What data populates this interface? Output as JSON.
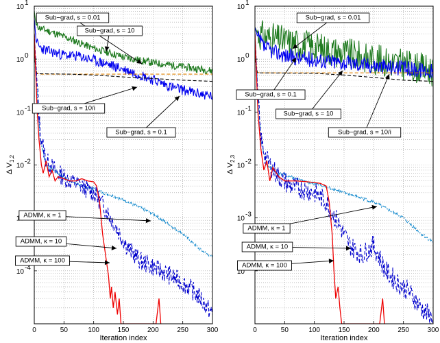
{
  "chart_data": [
    {
      "type": "line",
      "panel": "left",
      "ylabel_main": "Δ V",
      "ylabel_sub": "1,2",
      "xlabel": "Iteration index",
      "x_ticks": [
        0,
        50,
        100,
        150,
        200,
        250,
        300
      ],
      "xlim": [
        0,
        300
      ],
      "ylim": [
        1e-05,
        10
      ],
      "yscale": "log",
      "y_ticks": [
        {
          "value": 10,
          "mantissa": "10",
          "exp": "1"
        },
        {
          "value": 1,
          "mantissa": "10",
          "exp": "0"
        },
        {
          "value": 0.1,
          "mantissa": "10",
          "exp": "-1"
        },
        {
          "value": 0.01,
          "mantissa": "10",
          "exp": "-2"
        },
        {
          "value": 0.001,
          "mantissa": "10",
          "exp": "-3"
        },
        {
          "value": 0.0001,
          "mantissa": "10",
          "exp": "-4"
        }
      ],
      "grid": true,
      "series": [
        {
          "color": "#1f7a1f",
          "dash": "",
          "width": 1.2,
          "noise": 0.07,
          "seed": 11,
          "points": [
            [
              0,
              8
            ],
            [
              3,
              4.5
            ],
            [
              10,
              3.8
            ],
            [
              30,
              3.2
            ],
            [
              60,
              2.4
            ],
            [
              100,
              1.6
            ],
            [
              150,
              1.1
            ],
            [
              200,
              0.85
            ],
            [
              250,
              0.72
            ],
            [
              300,
              0.6
            ]
          ]
        },
        {
          "color": "#0000ee",
          "dash": "",
          "width": 1.1,
          "noise": 0.1,
          "seed": 23,
          "points": [
            [
              0,
              6
            ],
            [
              3,
              2.2
            ],
            [
              8,
              1.7
            ],
            [
              20,
              1.45
            ],
            [
              50,
              1.2
            ],
            [
              80,
              1.1
            ],
            [
              100,
              0.95
            ],
            [
              140,
              0.7
            ],
            [
              180,
              0.5
            ],
            [
              230,
              0.3
            ],
            [
              270,
              0.23
            ],
            [
              300,
              0.2
            ]
          ]
        },
        {
          "color": "#e08000",
          "dash": "5,3",
          "width": 1.1,
          "noise": 0,
          "seed": 3,
          "points": [
            [
              0,
              1.5
            ],
            [
              4,
              0.55
            ],
            [
              10,
              0.52
            ],
            [
              300,
              0.52
            ]
          ]
        },
        {
          "color": "#000000",
          "dash": "5,3",
          "width": 1.1,
          "noise": 0,
          "seed": 5,
          "points": [
            [
              0,
              1.2
            ],
            [
              4,
              0.53
            ],
            [
              60,
              0.52
            ],
            [
              100,
              0.5
            ],
            [
              150,
              0.46
            ],
            [
              200,
              0.43
            ],
            [
              250,
              0.4
            ],
            [
              300,
              0.38
            ]
          ]
        },
        {
          "color": "#1188cc",
          "dash": "6,2,2,2",
          "width": 1.1,
          "noise": 0.03,
          "seed": 7,
          "points": [
            [
              0,
              3
            ],
            [
              5,
              0.2
            ],
            [
              10,
              0.03
            ],
            [
              20,
              0.01
            ],
            [
              40,
              0.007
            ],
            [
              60,
              0.005
            ],
            [
              80,
              0.004
            ],
            [
              100,
              0.0035
            ],
            [
              150,
              0.0022
            ],
            [
              200,
              0.0012
            ],
            [
              250,
              0.0005
            ],
            [
              280,
              0.00025
            ],
            [
              300,
              0.00018
            ]
          ]
        },
        {
          "color": "#0000cc",
          "dash": "5,3",
          "width": 1.1,
          "noise": 0.18,
          "seed": 13,
          "points": [
            [
              0,
              3
            ],
            [
              5,
              0.3
            ],
            [
              10,
              0.04
            ],
            [
              20,
              0.012
            ],
            [
              40,
              0.007
            ],
            [
              60,
              0.005
            ],
            [
              80,
              0.004
            ],
            [
              100,
              0.003
            ],
            [
              120,
              0.0015
            ],
            [
              140,
              0.0006
            ],
            [
              160,
              0.00025
            ],
            [
              180,
              0.00015
            ],
            [
              200,
              0.00012
            ],
            [
              230,
              8e-05
            ],
            [
              260,
              5e-05
            ],
            [
              280,
              3e-05
            ],
            [
              300,
              1.5e-05
            ]
          ]
        },
        {
          "color": "#ee0000",
          "dash": "",
          "width": 1.3,
          "noise": 0,
          "seed": 1,
          "points": [
            [
              0,
              3
            ],
            [
              5,
              0.1
            ],
            [
              8,
              0.03
            ],
            [
              12,
              0.01
            ],
            [
              15,
              0.007
            ],
            [
              20,
              0.012
            ],
            [
              25,
              0.006
            ],
            [
              30,
              0.008
            ],
            [
              35,
              0.005
            ],
            [
              40,
              0.006
            ],
            [
              50,
              0.0055
            ],
            [
              60,
              0.005
            ],
            [
              70,
              0.005
            ],
            [
              80,
              0.0055
            ],
            [
              90,
              0.005
            ],
            [
              100,
              0.0048
            ],
            [
              105,
              0.004
            ],
            [
              110,
              0.002
            ],
            [
              115,
              0.0005
            ],
            [
              120,
              0.0002
            ],
            [
              125,
              8e-05
            ],
            [
              128,
              3e-05
            ],
            [
              130,
              5e-05
            ],
            [
              133,
              2e-05
            ],
            [
              136,
              4e-05
            ],
            [
              140,
              1.5e-05
            ],
            [
              143,
              3e-05
            ],
            [
              146,
              1e-05
            ],
            [
              205,
              1e-05
            ],
            [
              210,
              3e-05
            ],
            [
              213,
              1e-05
            ]
          ]
        }
      ],
      "annotations": [
        {
          "label": "Sub−grad, s = 0.01",
          "box": [
            106,
            26
          ],
          "target": [
            207,
            93
          ]
        },
        {
          "label": "Sub−grad, s = 10",
          "box": [
            160,
            45
          ],
          "target": [
            155,
            75
          ]
        },
        {
          "label": "Sub−grad, s = 10/i",
          "box": [
            100,
            158
          ],
          "target": [
            200,
            127
          ]
        },
        {
          "label": "Sub−grad, s = 0.1",
          "box": [
            206,
            193
          ],
          "target": [
            262,
            140
          ]
        },
        {
          "label": "ADMM, κ = 1",
          "box": [
            62,
            314
          ],
          "target": [
            220,
            322
          ]
        },
        {
          "label": "ADMM, κ = 10",
          "box": [
            60,
            352
          ],
          "target": [
            170,
            362
          ]
        },
        {
          "label": "ADMM, κ = 100",
          "box": [
            62,
            380
          ],
          "target": [
            160,
            383
          ]
        }
      ]
    },
    {
      "type": "line",
      "panel": "right",
      "ylabel_main": "Δ V",
      "ylabel_sub": "2,3",
      "xlabel": "Iteration index",
      "x_ticks": [
        0,
        50,
        100,
        150,
        200,
        250,
        300
      ],
      "xlim": [
        0,
        300
      ],
      "ylim": [
        1e-05,
        10
      ],
      "yscale": "log",
      "y_ticks": [
        {
          "value": 10,
          "mantissa": "10",
          "exp": "1"
        },
        {
          "value": 1,
          "mantissa": "10",
          "exp": "0"
        },
        {
          "value": 0.1,
          "mantissa": "10",
          "exp": "-1"
        },
        {
          "value": 0.01,
          "mantissa": "10",
          "exp": "-2"
        },
        {
          "value": 0.001,
          "mantissa": "10",
          "exp": "-3"
        },
        {
          "value": 0.0001,
          "mantissa": "10",
          "exp": "-4"
        }
      ],
      "grid": true,
      "series": [
        {
          "color": "#1f7a1f",
          "dash": "",
          "width": 1.1,
          "noise": 0.3,
          "seed": 31,
          "points": [
            [
              0,
              4
            ],
            [
              5,
              3
            ],
            [
              20,
              2.6
            ],
            [
              50,
              2.2
            ],
            [
              100,
              1.7
            ],
            [
              150,
              1.3
            ],
            [
              200,
              1.0
            ],
            [
              250,
              0.8
            ],
            [
              300,
              0.6
            ]
          ]
        },
        {
          "color": "#0000ee",
          "dash": "",
          "width": 1.1,
          "noise": 0.15,
          "seed": 37,
          "points": [
            [
              0,
              4
            ],
            [
              5,
              2.5
            ],
            [
              15,
              1.7
            ],
            [
              30,
              1.4
            ],
            [
              60,
              1.1
            ],
            [
              90,
              1.0
            ],
            [
              130,
              0.9
            ],
            [
              180,
              0.8
            ],
            [
              230,
              0.7
            ],
            [
              300,
              0.6
            ]
          ]
        },
        {
          "color": "#e08000",
          "dash": "5,3",
          "width": 1.1,
          "noise": 0,
          "seed": 3,
          "points": [
            [
              0,
              1.2
            ],
            [
              4,
              0.56
            ],
            [
              10,
              0.55
            ],
            [
              300,
              0.55
            ]
          ]
        },
        {
          "color": "#000000",
          "dash": "5,3",
          "width": 1.1,
          "noise": 0,
          "seed": 5,
          "points": [
            [
              0,
              1
            ],
            [
              4,
              0.55
            ],
            [
              100,
              0.54
            ],
            [
              150,
              0.5
            ],
            [
              200,
              0.45
            ],
            [
              250,
              0.4
            ],
            [
              300,
              0.38
            ]
          ]
        },
        {
          "color": "#1188cc",
          "dash": "6,2,2,2",
          "width": 1.1,
          "noise": 0.03,
          "seed": 41,
          "points": [
            [
              0,
              3
            ],
            [
              5,
              0.2
            ],
            [
              10,
              0.03
            ],
            [
              20,
              0.01
            ],
            [
              40,
              0.007
            ],
            [
              60,
              0.006
            ],
            [
              80,
              0.005
            ],
            [
              100,
              0.0045
            ],
            [
              150,
              0.003
            ],
            [
              200,
              0.002
            ],
            [
              250,
              0.001
            ],
            [
              280,
              0.0005
            ],
            [
              300,
              0.00035
            ]
          ]
        },
        {
          "color": "#0000cc",
          "dash": "5,3",
          "width": 1.1,
          "noise": 0.2,
          "seed": 43,
          "points": [
            [
              0,
              3
            ],
            [
              5,
              0.2
            ],
            [
              10,
              0.03
            ],
            [
              20,
              0.012
            ],
            [
              40,
              0.006
            ],
            [
              60,
              0.004
            ],
            [
              80,
              0.0035
            ],
            [
              100,
              0.003
            ],
            [
              120,
              0.002
            ],
            [
              140,
              0.0008
            ],
            [
              160,
              0.0003
            ],
            [
              180,
              0.0002
            ],
            [
              200,
              0.0003
            ],
            [
              220,
              0.0001
            ],
            [
              240,
              6e-05
            ],
            [
              260,
              4e-05
            ],
            [
              280,
              2e-05
            ],
            [
              300,
              1.2e-05
            ]
          ]
        },
        {
          "color": "#ee0000",
          "dash": "",
          "width": 1.3,
          "noise": 0,
          "seed": 2,
          "points": [
            [
              0,
              3
            ],
            [
              5,
              0.1
            ],
            [
              10,
              0.02
            ],
            [
              15,
              0.008
            ],
            [
              20,
              0.012
            ],
            [
              25,
              0.005
            ],
            [
              30,
              0.009
            ],
            [
              40,
              0.006
            ],
            [
              50,
              0.005
            ],
            [
              70,
              0.005
            ],
            [
              90,
              0.0048
            ],
            [
              110,
              0.0045
            ],
            [
              120,
              0.004
            ],
            [
              125,
              0.002
            ],
            [
              130,
              0.0005
            ],
            [
              133,
              0.0001
            ],
            [
              136,
              3e-05
            ],
            [
              140,
              5e-05
            ],
            [
              143,
              2e-05
            ],
            [
              146,
              1e-05
            ],
            [
              210,
              1e-05
            ],
            [
              215,
              3e-05
            ],
            [
              218,
              1e-05
            ]
          ]
        }
      ],
      "annotations": [
        {
          "label": "Sub−grad, s = 0.01",
          "box": [
            486,
            26
          ],
          "target": [
            427,
            71
          ]
        },
        {
          "label": "Sub−grad, s = 0.1",
          "box": [
            395,
            138
          ],
          "target": [
            432,
            84
          ]
        },
        {
          "label": "Sub−grad, s = 10",
          "box": [
            450,
            166
          ],
          "target": [
            500,
            103
          ]
        },
        {
          "label": "Sub−grad, s = 10/i",
          "box": [
            532,
            193
          ],
          "target": [
            568,
            108
          ]
        },
        {
          "label": "ADMM, κ = 1",
          "box": [
            389,
            333
          ],
          "target": [
            550,
            301
          ]
        },
        {
          "label": "ADMM, κ = 10",
          "box": [
            390,
            360
          ],
          "target": [
            512,
            362
          ]
        },
        {
          "label": "ADMM, κ = 100",
          "box": [
            386,
            387
          ],
          "target": [
            487,
            380
          ]
        }
      ]
    }
  ]
}
